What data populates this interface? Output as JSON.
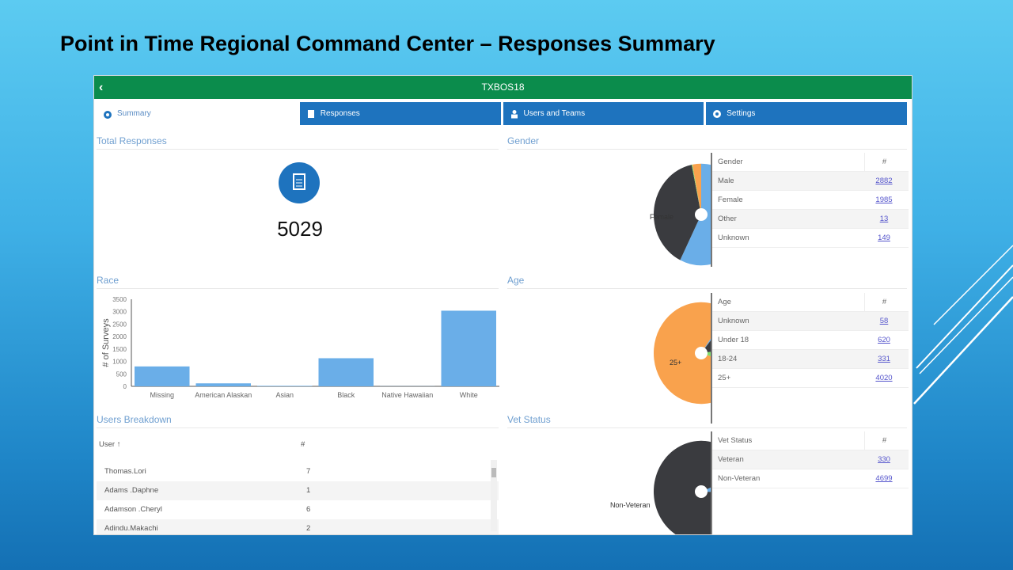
{
  "slide": {
    "title": "Point in Time Regional Command Center – Responses Summary"
  },
  "app": {
    "title": "TXBOS18",
    "back_icon": "chevron-left-icon",
    "tabs": [
      {
        "label": "Summary",
        "icon": "dashboard-icon",
        "active": true
      },
      {
        "label": "Responses",
        "icon": "document-icon"
      },
      {
        "label": "Users and Teams",
        "icon": "user-icon"
      },
      {
        "label": "Settings",
        "icon": "gear-icon"
      }
    ]
  },
  "total": {
    "title": "Total Responses",
    "value": "5029",
    "icon": "document-icon"
  },
  "gender": {
    "title": "Gender",
    "col1": "Gender",
    "col2": "#",
    "rows": [
      {
        "label": "Male",
        "value": "2882"
      },
      {
        "label": "Female",
        "value": "1985"
      },
      {
        "label": "Other",
        "value": "13"
      },
      {
        "label": "Unknown",
        "value": "149"
      }
    ]
  },
  "age": {
    "title": "Age",
    "col1": "Age",
    "col2": "#",
    "rows": [
      {
        "label": "Unknown",
        "value": "58"
      },
      {
        "label": "Under 18",
        "value": "620"
      },
      {
        "label": "18-24",
        "value": "331"
      },
      {
        "label": "25+",
        "value": "4020"
      }
    ]
  },
  "vet": {
    "title": "Vet Status",
    "col1": "Vet Status",
    "col2": "#",
    "rows": [
      {
        "label": "Veteran",
        "value": "330"
      },
      {
        "label": "Non-Veteran",
        "value": "4699"
      }
    ]
  },
  "race": {
    "title": "Race"
  },
  "users": {
    "title": "Users Breakdown",
    "col1": "User",
    "sort_icon": "sort-arrow-icon",
    "col2": "#",
    "rows": [
      {
        "name": "Thomas.Lori",
        "count": "7"
      },
      {
        "name": "Adams .Daphne",
        "count": "1"
      },
      {
        "name": "Adamson .Cheryl",
        "count": "6"
      },
      {
        "name": "Adindu.Makachi",
        "count": "2"
      }
    ]
  },
  "colors": {
    "header": "#0b8c4c",
    "tab": "#1e73be",
    "blue": "#6aaee8",
    "dark": "#3a3b3f",
    "orange": "#f9a24d",
    "green": "#7fdc6b"
  },
  "chart_data": [
    {
      "type": "bar",
      "title": "",
      "xlabel": "",
      "ylabel": "# of Surveys",
      "ylim": [
        0,
        3500
      ],
      "yticks": [
        0,
        500,
        1000,
        1500,
        2000,
        2500,
        3000,
        3500
      ],
      "categories": [
        "Missing",
        "American Alaskan",
        "Asian",
        "Black",
        "Native Hawaiian",
        "White"
      ],
      "values": [
        800,
        120,
        20,
        1130,
        5,
        3040
      ],
      "color": "#6aaee8"
    },
    {
      "type": "pie",
      "name": "gender",
      "labels": [
        "Male",
        "Female",
        "Other",
        "Unknown"
      ],
      "values": [
        2882,
        1985,
        13,
        149
      ],
      "colors": [
        "#6aaee8",
        "#3a3b3f",
        "#7fdc6b",
        "#f9a24d"
      ],
      "shown_labels": [
        "Male",
        "Female"
      ]
    },
    {
      "type": "pie",
      "name": "age",
      "labels": [
        "Unknown",
        "Under 18",
        "18-24",
        "25+"
      ],
      "values": [
        58,
        620,
        331,
        4020
      ],
      "colors": [
        "#6aaee8",
        "#3a3b3f",
        "#7fdc6b",
        "#f9a24d"
      ],
      "shown_labels": [
        "Under 18",
        "18-24",
        "25+"
      ]
    },
    {
      "type": "pie",
      "name": "vet",
      "labels": [
        "Veteran",
        "Non-Veteran"
      ],
      "values": [
        330,
        4699
      ],
      "colors": [
        "#6aaee8",
        "#3a3b3f"
      ],
      "shown_labels": [
        "Veteran",
        "Non-Veteran"
      ]
    }
  ]
}
